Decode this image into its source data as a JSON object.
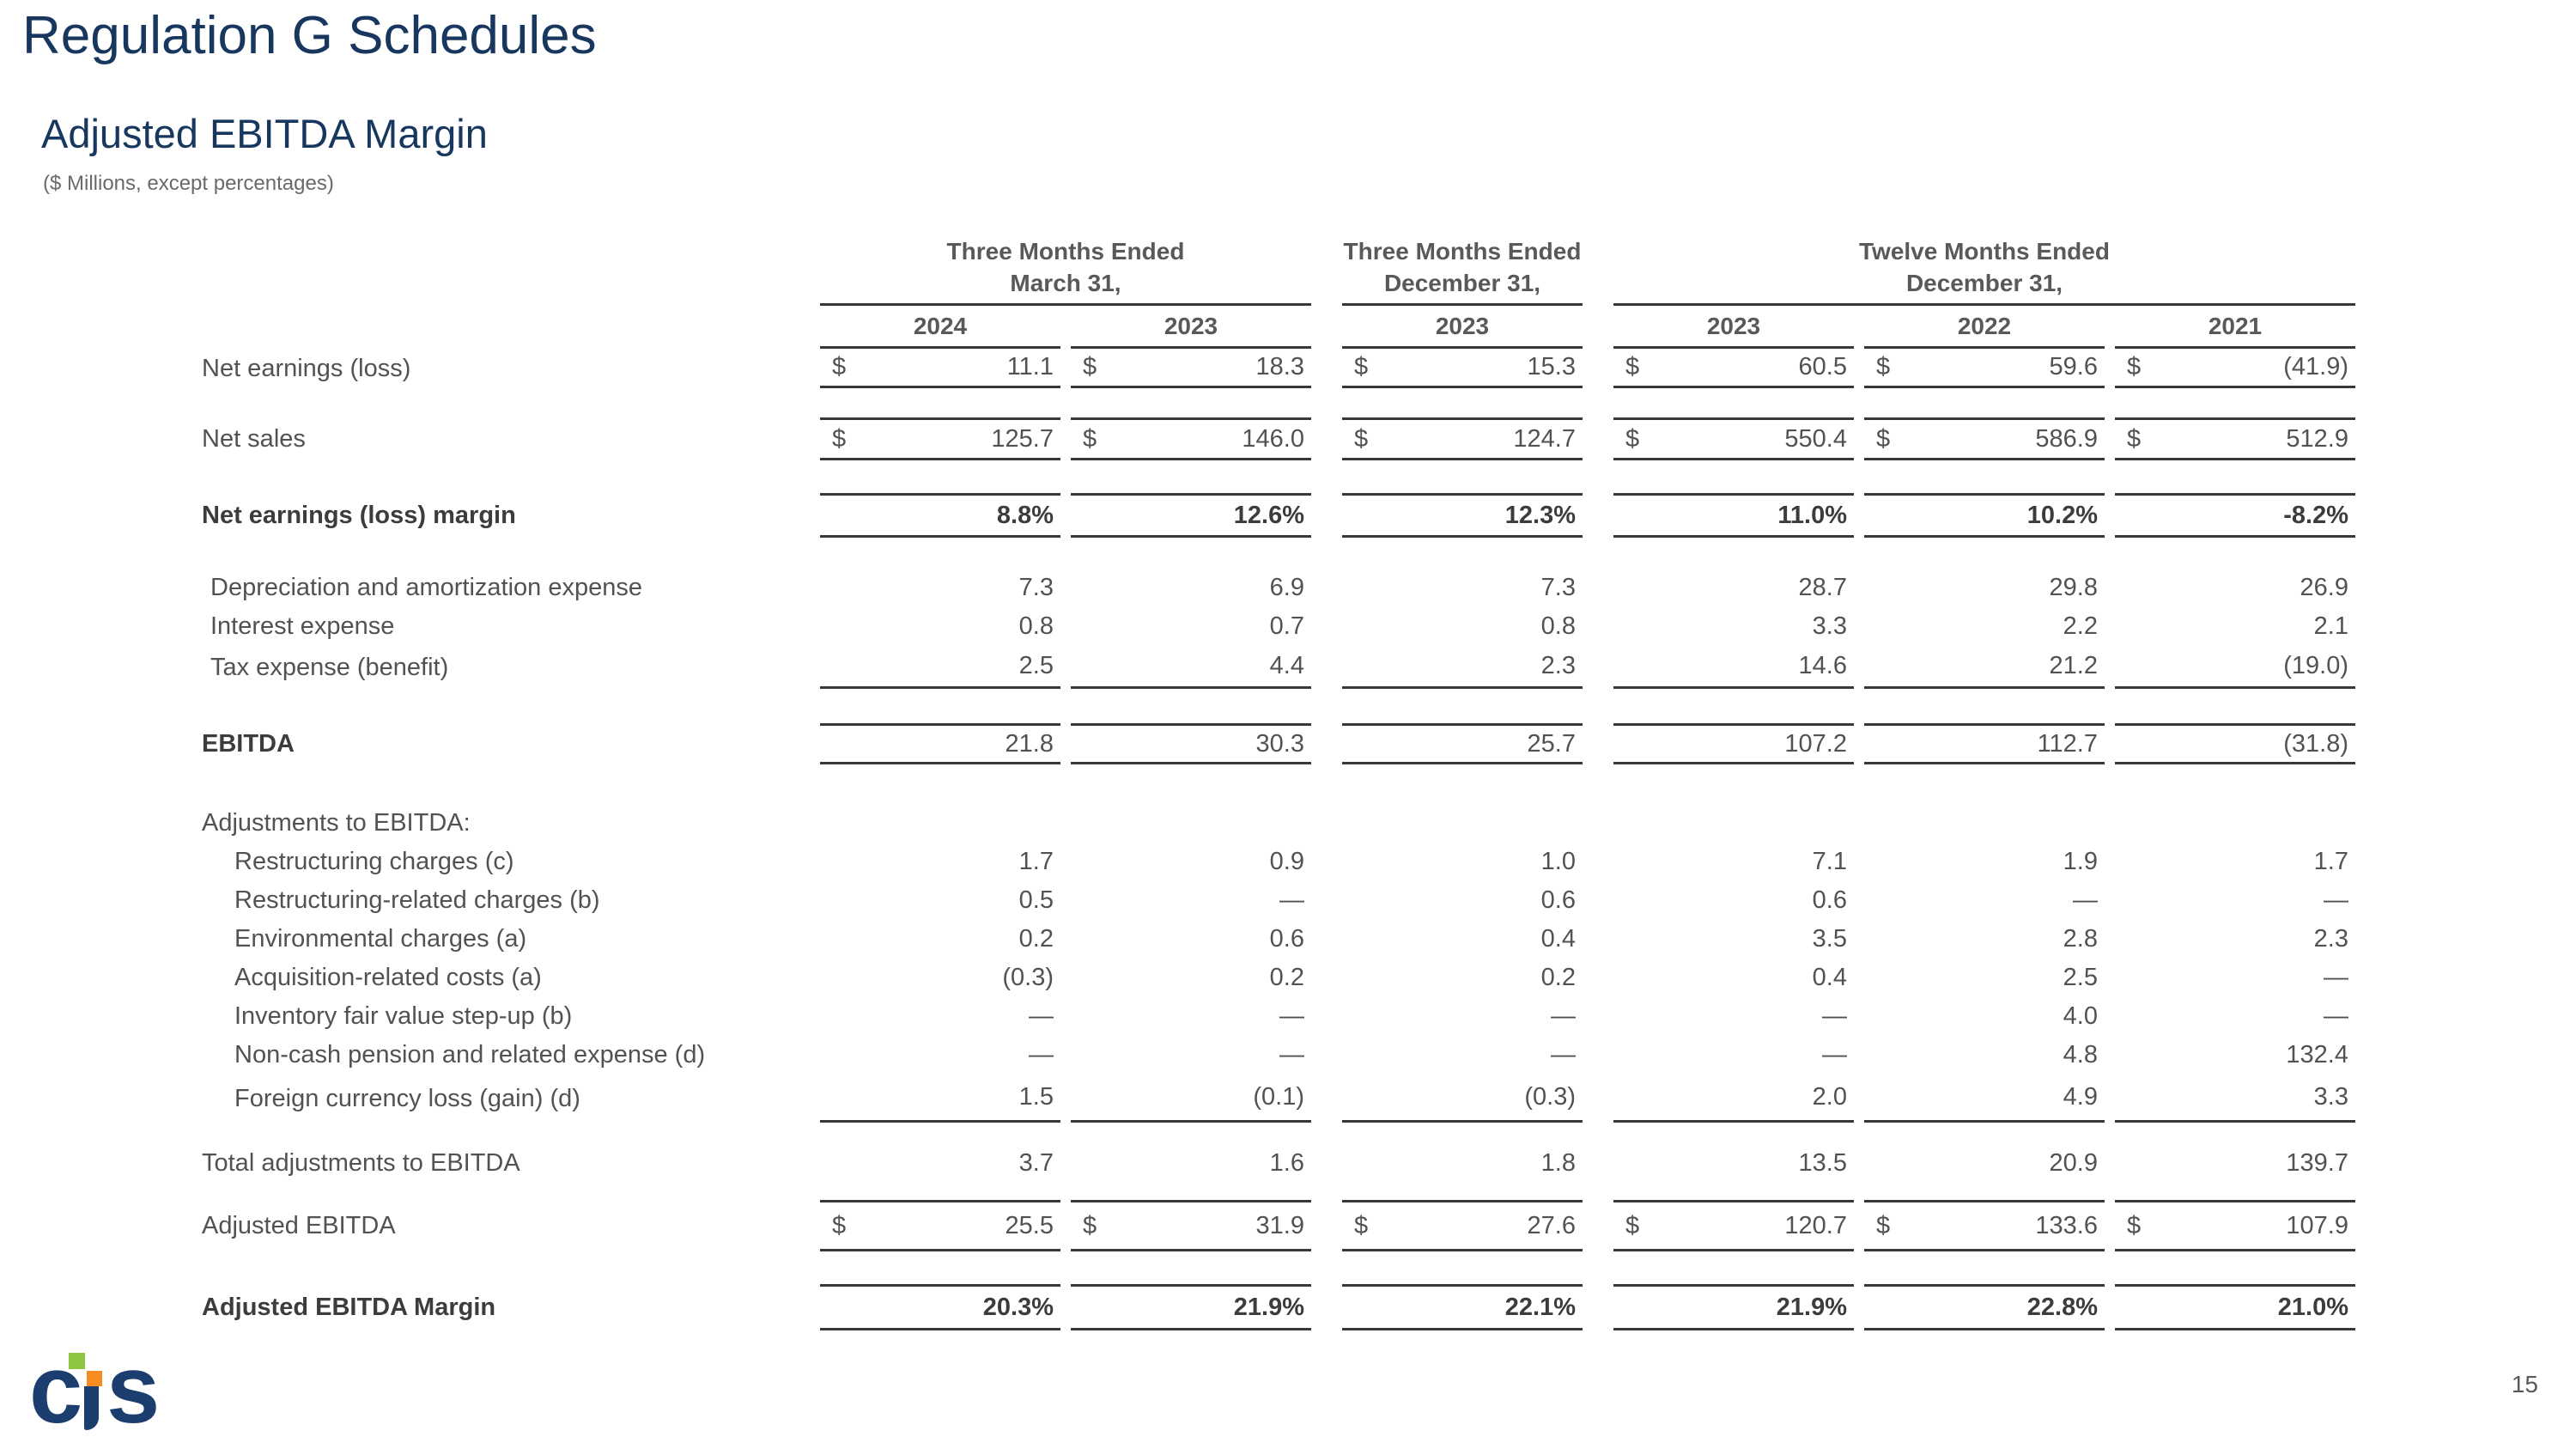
{
  "slide": {
    "title": "Regulation G Schedules",
    "subtitle": "Adjusted EBITDA Margin",
    "caption": "($ Millions, except percentages)",
    "page_number": "15"
  },
  "colors": {
    "title_navy": "#17375e",
    "table_text": "#525252",
    "bold_text": "#3c3c3c",
    "rule": "#383838",
    "logo_navy": "#1c3e6e",
    "logo_green": "#8cc63f",
    "logo_orange": "#f68b1f"
  },
  "logo": {
    "name": "cts",
    "letter_c": "c",
    "letter_s": "s"
  },
  "table": {
    "column_groups": [
      {
        "line1": "Three Months Ended",
        "line2": "March 31,"
      },
      {
        "line1": "Three Months Ended",
        "line2": "December 31,"
      },
      {
        "line1": "Twelve Months Ended",
        "line2": "December 31,"
      }
    ],
    "year_columns": [
      "2024",
      "2023",
      "2023",
      "2023",
      "2022",
      "2021"
    ],
    "rows": [
      {
        "label": "Net earnings (loss)",
        "currency": "$",
        "values": [
          "11.1",
          "18.3",
          "15.3",
          "60.5",
          "59.6",
          "(41.9)"
        ]
      },
      {
        "label": "Net sales",
        "currency": "$",
        "values": [
          "125.7",
          "146.0",
          "124.7",
          "550.4",
          "586.9",
          "512.9"
        ]
      },
      {
        "label": "Net earnings (loss) margin",
        "values": [
          "8.8%",
          "12.6%",
          "12.3%",
          "11.0%",
          "10.2%",
          "-8.2%"
        ]
      },
      {
        "label": "Depreciation and amortization expense",
        "values": [
          "7.3",
          "6.9",
          "7.3",
          "28.7",
          "29.8",
          "26.9"
        ]
      },
      {
        "label": "Interest expense",
        "values": [
          "0.8",
          "0.7",
          "0.8",
          "3.3",
          "2.2",
          "2.1"
        ]
      },
      {
        "label": "Tax expense (benefit)",
        "values": [
          "2.5",
          "4.4",
          "2.3",
          "14.6",
          "21.2",
          "(19.0)"
        ]
      },
      {
        "label": "EBITDA",
        "values": [
          "21.8",
          "30.3",
          "25.7",
          "107.2",
          "112.7",
          "(31.8)"
        ]
      },
      {
        "label": "Adjustments to EBITDA:"
      },
      {
        "label": "Restructuring charges (c)",
        "values": [
          "1.7",
          "0.9",
          "1.0",
          "7.1",
          "1.9",
          "1.7"
        ]
      },
      {
        "label": "Restructuring-related charges (b)",
        "values": [
          "0.5",
          "—",
          "0.6",
          "0.6",
          "—",
          "—"
        ]
      },
      {
        "label": "Environmental charges (a)",
        "values": [
          "0.2",
          "0.6",
          "0.4",
          "3.5",
          "2.8",
          "2.3"
        ]
      },
      {
        "label": "Acquisition-related costs (a)",
        "values": [
          "(0.3)",
          "0.2",
          "0.2",
          "0.4",
          "2.5",
          "—"
        ]
      },
      {
        "label": "Inventory fair value step-up (b)",
        "values": [
          "—",
          "—",
          "—",
          "—",
          "4.0",
          "—"
        ]
      },
      {
        "label": "Non-cash pension and related expense (d)",
        "values": [
          "—",
          "—",
          "—",
          "—",
          "4.8",
          "132.4"
        ]
      },
      {
        "label": "Foreign currency loss (gain) (d)",
        "values": [
          "1.5",
          "(0.1)",
          "(0.3)",
          "2.0",
          "4.9",
          "3.3"
        ]
      },
      {
        "label": "Total adjustments to EBITDA",
        "values": [
          "3.7",
          "1.6",
          "1.8",
          "13.5",
          "20.9",
          "139.7"
        ]
      },
      {
        "label": "Adjusted EBITDA",
        "currency": "$",
        "values": [
          "25.5",
          "31.9",
          "27.6",
          "120.7",
          "133.6",
          "107.9"
        ]
      },
      {
        "label": "Adjusted EBITDA Margin",
        "values": [
          "20.3%",
          "21.9%",
          "22.1%",
          "21.9%",
          "22.8%",
          "21.0%"
        ]
      }
    ]
  }
}
